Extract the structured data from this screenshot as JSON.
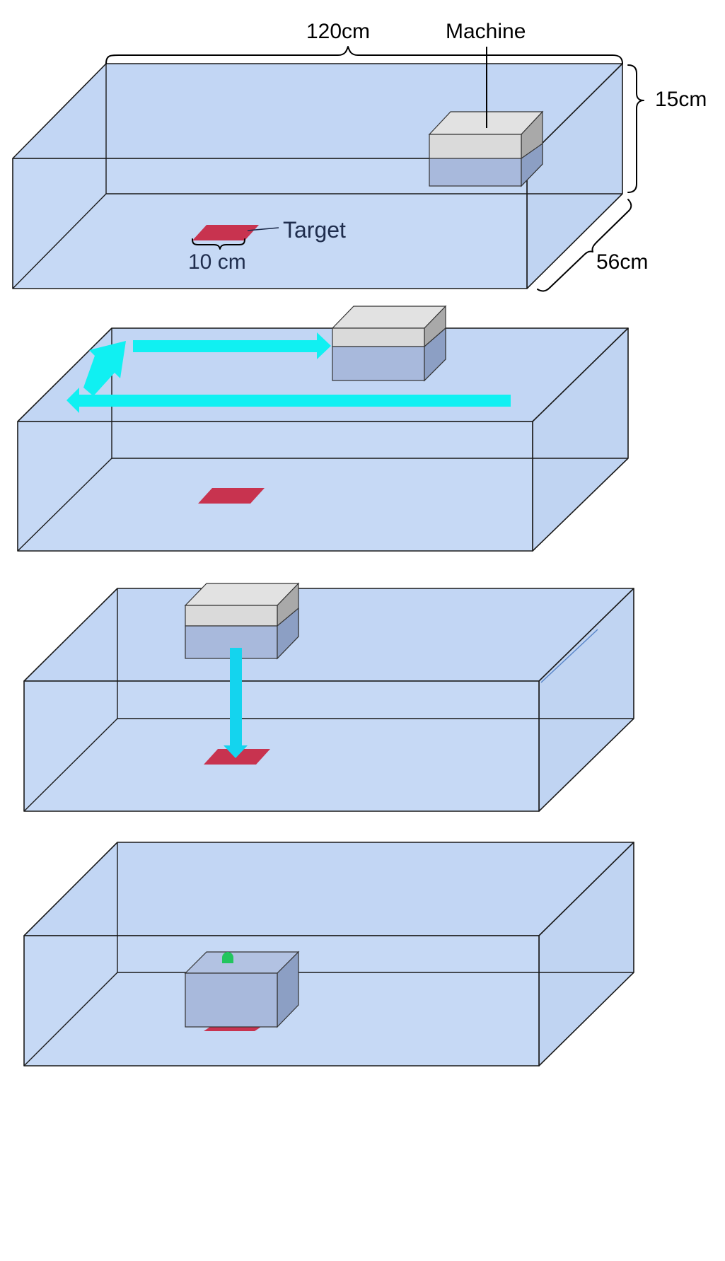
{
  "labels": {
    "length": "120cm",
    "machine": "Machine",
    "height": "15cm",
    "depth": "56cm",
    "target": "Target",
    "target_size": "10 cm"
  },
  "colors": {
    "water": "#c2d6f4",
    "water_front": "#c6d9f5",
    "machine_top": "#e2e2e2",
    "machine_face_light": "#dadada",
    "machine_side": "#a9a9a9",
    "machine_submerged": "#a8b9dc",
    "machine_submerged_side": "#8c9fc4",
    "target": "#c8334f",
    "arrow": "#10f0f2",
    "arrow_down": "#14d4ee",
    "indicator": "#22c55e"
  },
  "panels": [
    {
      "id": 1,
      "machine_state": "floating",
      "arrow": "none"
    },
    {
      "id": 2,
      "machine_state": "floating",
      "arrow": "search path"
    },
    {
      "id": 3,
      "machine_state": "floating",
      "arrow": "dive"
    },
    {
      "id": 4,
      "machine_state": "submerged on target",
      "arrow": "none"
    }
  ]
}
